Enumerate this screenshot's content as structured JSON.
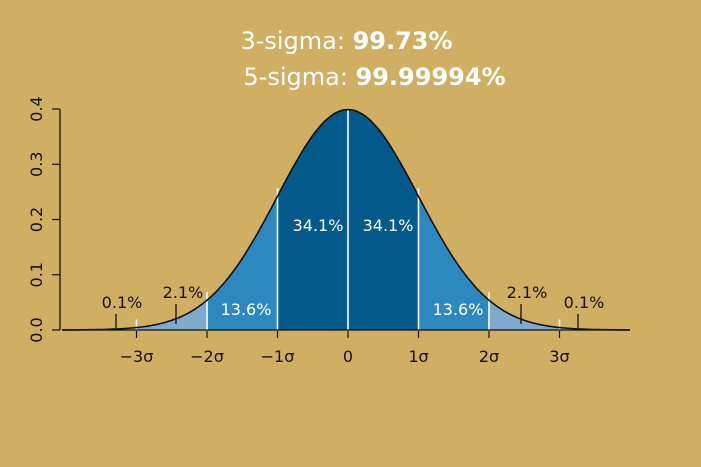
{
  "header": {
    "line1_label": "3-sigma: ",
    "line1_value": "99.73%",
    "line2_label": "5-sigma: ",
    "line2_value": "99.99994%"
  },
  "chart_data": {
    "type": "area",
    "title": "",
    "xlabel": "",
    "ylabel": "",
    "distribution": "standard normal",
    "xlim": [
      -4.3,
      4.3
    ],
    "ylim": [
      0,
      0.4
    ],
    "y_ticks": [
      0.0,
      0.1,
      0.2,
      0.3,
      0.4
    ],
    "y_tick_labels": [
      "0.0",
      "0.1",
      "0.2",
      "0.3",
      "0.4"
    ],
    "x_ticks": [
      -3,
      -2,
      -1,
      0,
      1,
      2,
      3
    ],
    "x_tick_labels": [
      "−3σ",
      "−2σ",
      "−1σ",
      "0",
      "1σ",
      "2σ",
      "3σ"
    ],
    "regions": [
      {
        "from": -4.3,
        "to": -3,
        "percent_label": "0.1%",
        "color": "#A3BDD6"
      },
      {
        "from": -3,
        "to": -2,
        "percent_label": "2.1%",
        "color": "#7FA9CF"
      },
      {
        "from": -2,
        "to": -1,
        "percent_label": "13.6%",
        "color": "#2D88C0"
      },
      {
        "from": -1,
        "to": 0,
        "percent_label": "34.1%",
        "color": "#045A8D"
      },
      {
        "from": 0,
        "to": 1,
        "percent_label": "34.1%",
        "color": "#045A8D"
      },
      {
        "from": 1,
        "to": 2,
        "percent_label": "13.6%",
        "color": "#2D88C0"
      },
      {
        "from": 2,
        "to": 3,
        "percent_label": "2.1%",
        "color": "#7FA9CF"
      },
      {
        "from": 3,
        "to": 4.3,
        "percent_label": "0.1%",
        "color": "#A3BDD6"
      }
    ],
    "grid": false,
    "colors": {
      "background": "#D0AE62",
      "curve": "#111111",
      "divider": "#FFFFFF",
      "text_dark": "#111111",
      "text_light": "#FFFFFF"
    }
  }
}
